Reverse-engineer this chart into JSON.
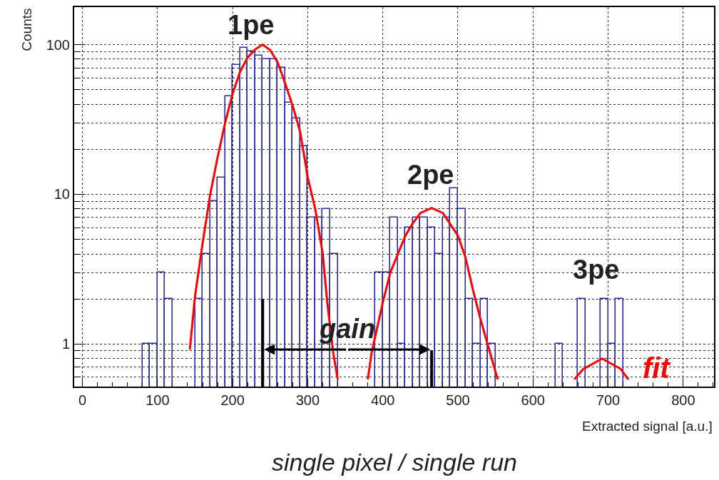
{
  "chart_data": {
    "type": "histogram",
    "xlabel": "Extracted signal [a.u.]",
    "ylabel": "Counts",
    "bins": [
      80,
      90,
      100,
      110,
      120,
      130,
      140,
      150,
      160,
      170,
      180,
      190,
      200,
      210,
      220,
      230,
      240,
      250,
      260,
      270,
      280,
      290,
      300,
      310,
      320,
      330,
      340,
      350,
      360,
      370,
      380,
      390,
      400,
      410,
      420,
      430,
      440,
      450,
      460,
      470,
      480,
      490,
      500,
      510,
      520,
      530,
      540,
      550,
      560,
      570,
      580,
      590,
      600,
      610,
      620,
      630,
      640,
      650,
      660,
      670,
      680,
      690,
      700,
      710,
      720
    ],
    "values": [
      1,
      1,
      3,
      2,
      null,
      null,
      null,
      2,
      4,
      9,
      13,
      45,
      73,
      95,
      90,
      84,
      80,
      80,
      70,
      41,
      32,
      21,
      7,
      7,
      8,
      4,
      null,
      null,
      null,
      null,
      null,
      3,
      3,
      7,
      1,
      6,
      7,
      7,
      6,
      4,
      7,
      11,
      8,
      2,
      1,
      2,
      1,
      null,
      null,
      null,
      null,
      null,
      null,
      null,
      null,
      1,
      null,
      null,
      2,
      null,
      null,
      2,
      1,
      2
    ],
    "color": "#2b2ba8",
    "series": [
      {
        "name": "fit",
        "type": "line",
        "color": "#ff0000",
        "x": [
          143,
          150,
          160,
          170,
          180,
          190,
          200,
          210,
          220,
          230,
          240,
          250,
          260,
          270,
          280,
          290,
          300,
          310,
          320,
          326,
          334,
          340,
          null,
          380,
          385,
          400,
          410,
          421,
          430,
          440,
          450,
          465,
          480,
          500,
          510,
          520,
          530,
          540,
          553,
          null,
          655,
          667,
          692,
          717,
          727
        ],
        "values": [
          0.92,
          2.1,
          4.7,
          9.9,
          17.7,
          30,
          47,
          66,
          82,
          93,
          100,
          92,
          76,
          55,
          39,
          26,
          13,
          8,
          4,
          1.9,
          0.87,
          0.58,
          null,
          0.58,
          0.87,
          1.9,
          3,
          4.1,
          5.3,
          6.4,
          7.5,
          8.1,
          7.5,
          5.3,
          3.8,
          2.3,
          1.47,
          0.98,
          0.58,
          null,
          0.58,
          0.68,
          0.8,
          0.68,
          0.58
        ]
      }
    ],
    "ref_lines": [
      {
        "axis": "x",
        "value": 240,
        "color": "#000000"
      },
      {
        "axis": "x",
        "value": 465,
        "color": "#000000"
      }
    ],
    "annotations": [
      "1pe",
      "2pe",
      "3pe",
      {
        "text": "gain",
        "x": 465,
        "y": 0.92
      },
      "single pixel / single run"
    ],
    "xlim": [
      -11,
      841
    ],
    "xticks": [
      0,
      100,
      200,
      300,
      400,
      500,
      600,
      700,
      800
    ],
    "ylim": [
      0.52,
      178
    ],
    "yticks": [
      1,
      10,
      100
    ],
    "log": "y",
    "grid": true,
    "legend": false
  }
}
